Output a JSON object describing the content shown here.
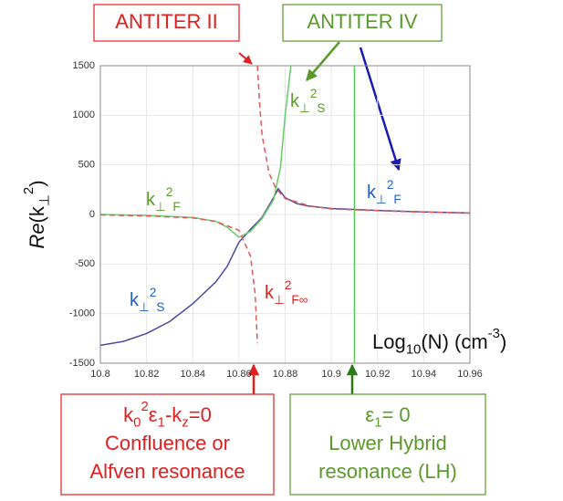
{
  "chart_data": {
    "type": "line",
    "ylabel": [
      {
        "text": "Re",
        "italic": true
      },
      {
        "text": "(k"
      },
      {
        "text": "⊥",
        "sub": true
      },
      {
        "text": "2",
        "sup": true
      },
      {
        "text": ")"
      }
    ],
    "xlabel": [
      {
        "text": "Log"
      },
      {
        "text": "10",
        "sub": true
      },
      {
        "text": "(N) (cm"
      },
      {
        "text": "-3",
        "sup": true
      },
      {
        "text": ")"
      }
    ],
    "xlim": [
      10.8,
      10.96
    ],
    "xticks": [
      10.8,
      10.82,
      10.84,
      10.86,
      10.88,
      10.9,
      10.92,
      10.94,
      10.96
    ],
    "ylim": [
      -1500,
      1500
    ],
    "yticks": [
      -1500,
      -1000,
      -500,
      0,
      500,
      1000,
      1500
    ],
    "grid": true,
    "series": [
      {
        "color": "#4a4a9c",
        "dash": false,
        "x": [
          10.8,
          10.81,
          10.82,
          10.83,
          10.84,
          10.85,
          10.855,
          10.86,
          10.865,
          10.87,
          10.875,
          10.877,
          10.88,
          10.885,
          10.89,
          10.9,
          10.92,
          10.94,
          10.96
        ],
        "values": [
          -1320,
          -1280,
          -1200,
          -1080,
          -900,
          -680,
          -520,
          -280,
          -150,
          -30,
          170,
          260,
          170,
          110,
          85,
          60,
          40,
          25,
          15
        ]
      },
      {
        "color": "#66cc66",
        "dash": false,
        "x": [
          10.8,
          10.82,
          10.84,
          10.85,
          10.855,
          10.86,
          10.865,
          10.87,
          10.875,
          10.878,
          10.88,
          10.8825
        ],
        "values": [
          0,
          -10,
          -30,
          -70,
          -130,
          -230,
          -170,
          -40,
          150,
          480,
          1000,
          1500
        ]
      },
      {
        "color": "#e05a5a",
        "dash": true,
        "x": [
          10.8,
          10.82,
          10.84,
          10.85,
          10.86,
          10.865,
          10.867,
          10.868,
          null,
          10.868,
          10.869,
          10.87,
          10.873,
          10.876,
          10.88,
          10.89,
          10.9,
          10.93,
          10.96
        ],
        "values": [
          -5,
          -15,
          -35,
          -70,
          -160,
          -420,
          -800,
          -1300,
          null,
          1500,
          1100,
          800,
          420,
          260,
          160,
          90,
          55,
          30,
          15
        ]
      },
      {
        "color": "#5cc85c",
        "dash": false,
        "x": [
          10.91,
          10.91
        ],
        "values": [
          -1500,
          1500
        ]
      }
    ],
    "curve_labels": [
      {
        "color": "#5a9a2a",
        "parts": [
          {
            "text": "k"
          },
          {
            "text": "⊥",
            "sub": true
          },
          {
            "text": "2",
            "sup": true
          },
          {
            "text": "S",
            "sub": true
          }
        ]
      },
      {
        "color": "#5a9a2a",
        "parts": [
          {
            "text": "k"
          },
          {
            "text": "⊥",
            "sub": true
          },
          {
            "text": "2",
            "sup": true
          },
          {
            "text": "F",
            "sub": true
          }
        ]
      },
      {
        "color": "#2060d0",
        "parts": [
          {
            "text": "k"
          },
          {
            "text": "⊥",
            "sub": true
          },
          {
            "text": "2",
            "sup": true
          },
          {
            "text": "F",
            "sub": true
          }
        ]
      },
      {
        "color": "#2060d0",
        "parts": [
          {
            "text": "k"
          },
          {
            "text": "⊥",
            "sub": true
          },
          {
            "text": "2",
            "sup": true
          },
          {
            "text": "S",
            "sub": true
          }
        ]
      },
      {
        "color": "#e02020",
        "parts": [
          {
            "text": "k"
          },
          {
            "text": "⊥",
            "sub": true
          },
          {
            "text": "2",
            "sup": true
          },
          {
            "text": "F∞",
            "sub": true
          }
        ]
      }
    ],
    "boxes": [
      {
        "color": "#e02020",
        "lines": [
          [
            {
              "text": "ANTITER II"
            }
          ]
        ]
      },
      {
        "color": "#5a9a2a",
        "lines": [
          [
            {
              "text": "ANTITER IV"
            }
          ]
        ]
      },
      {
        "color": "#e02020",
        "lines": [
          [
            {
              "text": "k"
            },
            {
              "text": "0",
              "sub": true
            },
            {
              "text": "2",
              "sup": true
            },
            {
              "text": "ε"
            },
            {
              "text": "1",
              "sub": true
            },
            {
              "text": "-k"
            },
            {
              "text": "z",
              "sub": true
            },
            {
              "text": "=0"
            }
          ],
          [
            {
              "text": "Confluence or"
            }
          ],
          [
            {
              "text": "Alfven resonance"
            }
          ]
        ]
      },
      {
        "color": "#5a9a2a",
        "lines": [
          [
            {
              "text": "ε"
            },
            {
              "text": "1",
              "sub": true
            },
            {
              "text": "= 0"
            }
          ],
          [
            {
              "text": "Lower Hybrid"
            }
          ],
          [
            {
              "text": "resonance (LH)"
            }
          ]
        ]
      }
    ]
  }
}
